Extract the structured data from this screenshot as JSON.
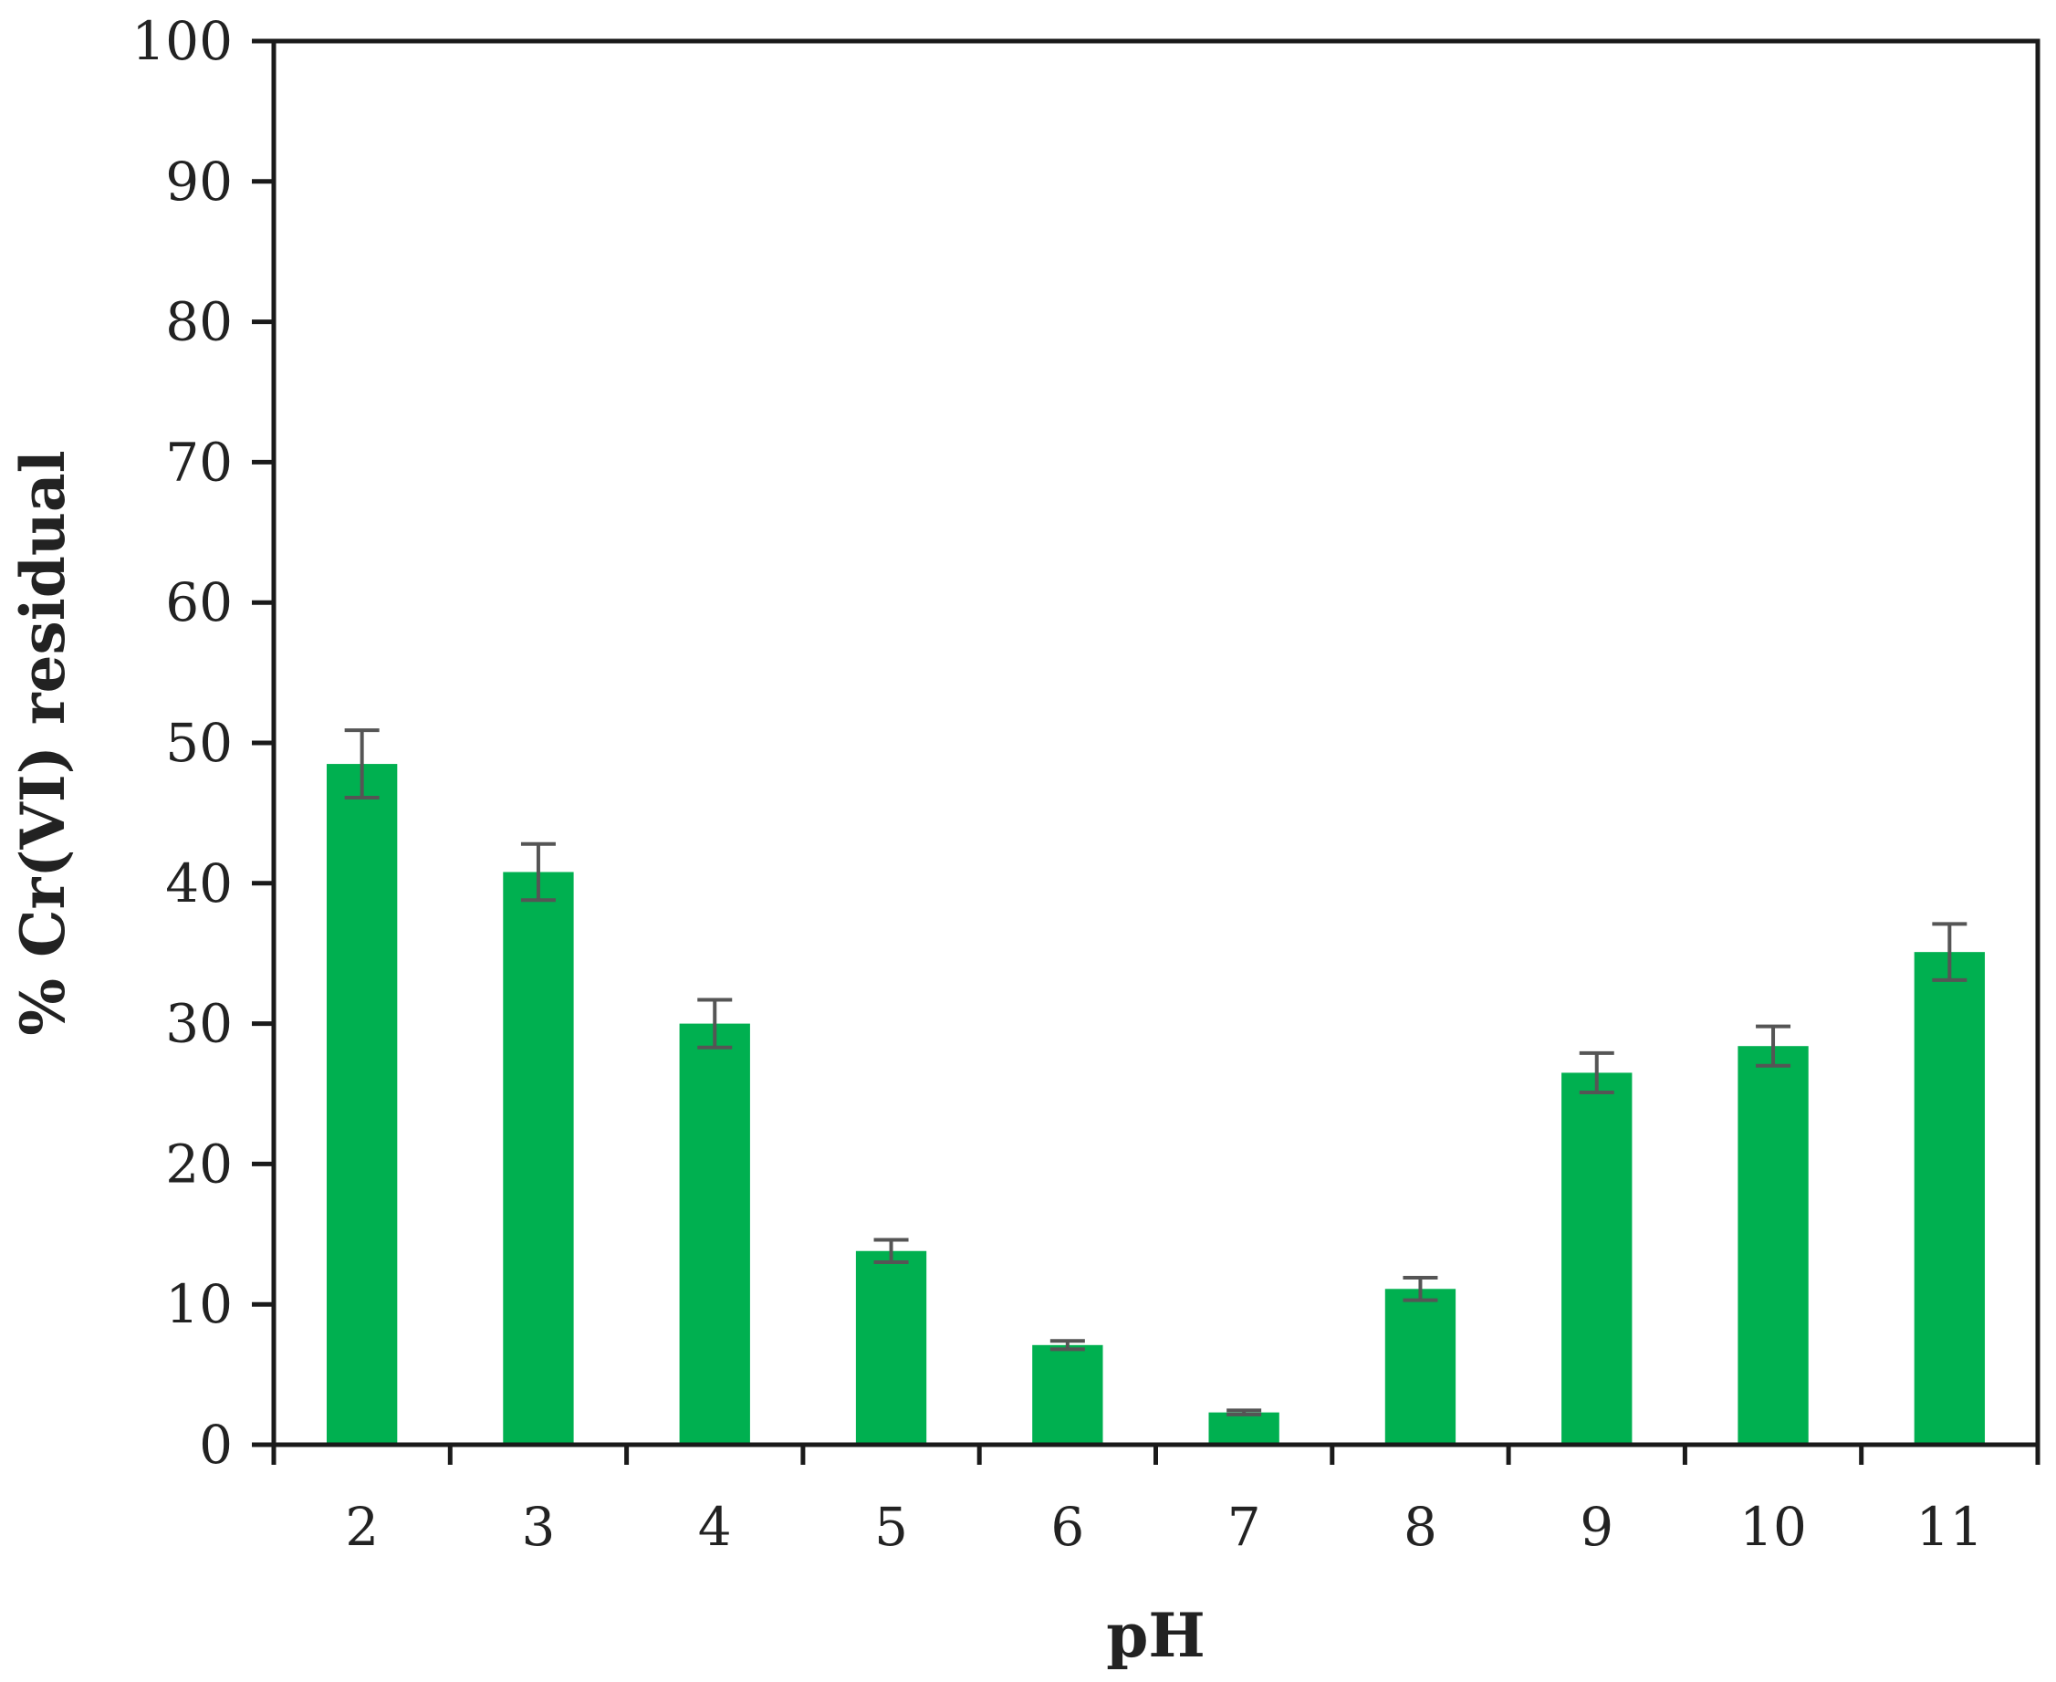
{
  "chart_data": {
    "type": "bar",
    "title": "",
    "xlabel": "pH",
    "ylabel": "% Cr(VI) residual",
    "categories": [
      "2",
      "3",
      "4",
      "5",
      "6",
      "7",
      "8",
      "9",
      "10",
      "11"
    ],
    "values": [
      48.5,
      40.8,
      30.0,
      13.8,
      7.1,
      2.3,
      11.1,
      26.5,
      28.4,
      35.1
    ],
    "errors": [
      2.4,
      2.0,
      1.7,
      0.8,
      0.3,
      0.15,
      0.8,
      1.4,
      1.4,
      2.0
    ],
    "ylim": [
      0,
      100
    ],
    "yticks": [
      0,
      10,
      20,
      30,
      40,
      50,
      60,
      70,
      80,
      90,
      100
    ],
    "grid": false,
    "legend": "none",
    "bar_color": "#00b050",
    "error_bar_color": "#555555"
  }
}
